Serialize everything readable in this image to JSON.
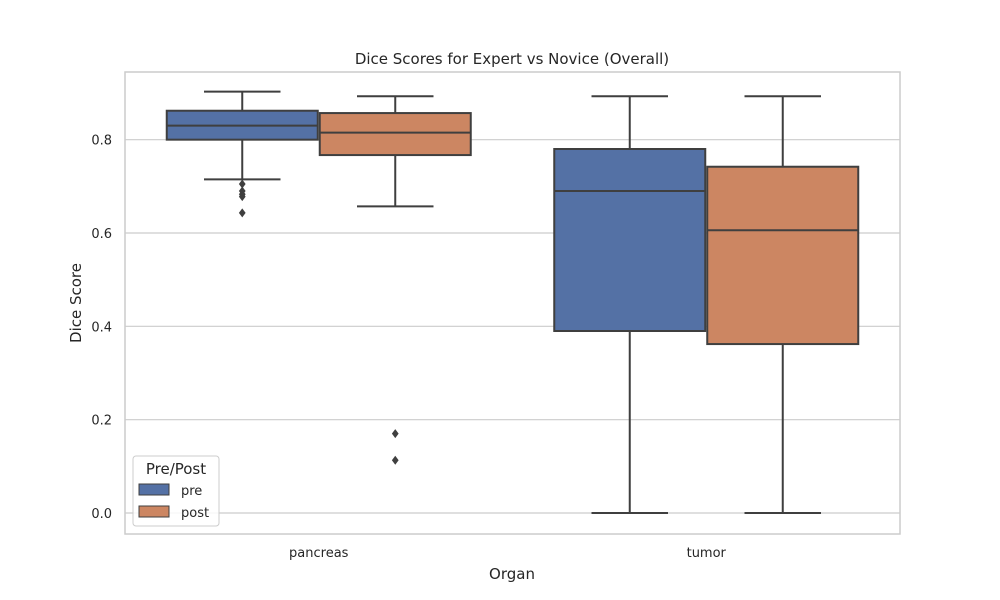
{
  "chart_data": {
    "type": "box",
    "title": "Dice Scores for Expert vs Novice (Overall)",
    "xlabel": "Organ",
    "ylabel": "Dice Score",
    "categories": [
      "pancreas",
      "tumor"
    ],
    "ylim": [
      -0.045,
      0.945
    ],
    "yticks": [
      "0.0",
      "0.2",
      "0.4",
      "0.6",
      "0.8"
    ],
    "grid": "horizontal",
    "legend": {
      "title": "Pre/Post",
      "position": "lower-left"
    },
    "series": [
      {
        "name": "pre",
        "color": "#5471a5",
        "boxes": [
          {
            "category": "pancreas",
            "whisker_low": 0.715,
            "q1": 0.8,
            "median": 0.83,
            "q3": 0.862,
            "whisker_high": 0.903,
            "outliers": [
              0.705,
              0.69,
              0.683,
              0.678,
              0.643
            ]
          },
          {
            "category": "tumor",
            "whisker_low": 0.0,
            "q1": 0.39,
            "median": 0.69,
            "q3": 0.78,
            "whisker_high": 0.893,
            "outliers": []
          }
        ]
      },
      {
        "name": "post",
        "color": "#cc8662",
        "boxes": [
          {
            "category": "pancreas",
            "whisker_low": 0.657,
            "q1": 0.767,
            "median": 0.815,
            "q3": 0.857,
            "whisker_high": 0.893,
            "outliers": [
              0.17,
              0.113
            ]
          },
          {
            "category": "tumor",
            "whisker_low": 0.0,
            "q1": 0.362,
            "median": 0.606,
            "q3": 0.742,
            "whisker_high": 0.893,
            "outliers": []
          }
        ]
      }
    ]
  }
}
